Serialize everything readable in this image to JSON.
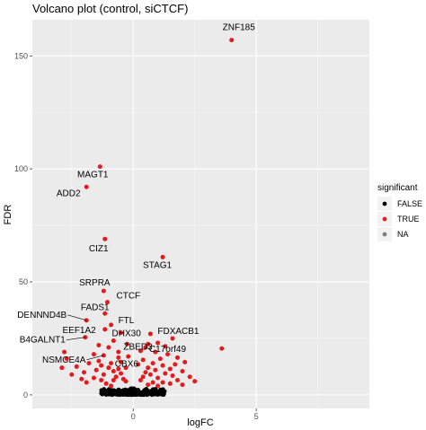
{
  "chart_data": {
    "type": "scatter",
    "title": "Volcano plot (control, siCTCF)",
    "xlabel": "logFC",
    "ylabel": "FDR",
    "xlim": [
      -4.1,
      9.6
    ],
    "ylim": [
      -6.0,
      166.0
    ],
    "xticks": [
      0,
      5
    ],
    "yticks": [
      0,
      50,
      100,
      150
    ],
    "grid": true,
    "legend": {
      "title": "significant",
      "placement": "right",
      "items": [
        {
          "label": "FALSE",
          "color": "#000000"
        },
        {
          "label": "TRUE",
          "color": "#e41a1c"
        },
        {
          "label": "NA",
          "color": "#7f7f7f"
        }
      ]
    },
    "labeled_points": [
      {
        "label": "ZNF185",
        "x": 4.0,
        "y": 157.0
      },
      {
        "label": "MAGT1",
        "x": -1.35,
        "y": 101.0
      },
      {
        "label": "ADD2",
        "x": -1.9,
        "y": 92.0
      },
      {
        "label": "CIZ1",
        "x": -1.15,
        "y": 69.0
      },
      {
        "label": "STAG1",
        "x": 1.2,
        "y": 61.0
      },
      {
        "label": "SRPRA",
        "x": -1.2,
        "y": 46.0
      },
      {
        "label": "CTCF",
        "x": -1.05,
        "y": 41.0
      },
      {
        "label": "FADS1",
        "x": -1.15,
        "y": 36.0
      },
      {
        "label": "DENNND4B",
        "x": -1.9,
        "y": 33.0
      },
      {
        "label": "FTL",
        "x": -0.9,
        "y": 31.0
      },
      {
        "label": "EEF1A2",
        "x": -1.15,
        "y": 29.0
      },
      {
        "label": "DHX30",
        "x": -0.5,
        "y": 27.5
      },
      {
        "label": "FDXACB1",
        "x": 0.7,
        "y": 27.0
      },
      {
        "label": "B4GALNT1",
        "x": -1.95,
        "y": 25.5
      },
      {
        "label": "ZBED3",
        "x": -0.25,
        "y": 22.5
      },
      {
        "label": "C17orf49",
        "x": 0.5,
        "y": 21.0
      },
      {
        "label": "NSMCE4A",
        "x": -1.2,
        "y": 17.5
      },
      {
        "label": "CBX6",
        "x": -0.6,
        "y": 16.5
      }
    ],
    "true_points": [
      [
        3.6,
        20.5
      ],
      [
        1.6,
        25.0
      ],
      [
        1.3,
        21.5
      ],
      [
        1.0,
        23.0
      ],
      [
        0.9,
        19.0
      ],
      [
        -2.8,
        19.0
      ],
      [
        -2.7,
        16.0
      ],
      [
        -2.3,
        12.5
      ],
      [
        -2.0,
        10.0
      ],
      [
        -1.8,
        14.0
      ],
      [
        -1.6,
        18.0
      ],
      [
        -1.4,
        15.0
      ],
      [
        -1.5,
        11.0
      ],
      [
        -1.3,
        13.0
      ],
      [
        -1.2,
        9.0
      ],
      [
        -1.0,
        12.0
      ],
      [
        -0.9,
        14.0
      ],
      [
        -0.8,
        10.5
      ],
      [
        -0.7,
        8.0
      ],
      [
        -0.6,
        11.5
      ],
      [
        -0.5,
        9.5
      ],
      [
        -0.4,
        7.0
      ],
      [
        -0.3,
        6.0
      ],
      [
        0.3,
        6.5
      ],
      [
        0.4,
        8.0
      ],
      [
        0.5,
        10.0
      ],
      [
        0.6,
        12.0
      ],
      [
        0.7,
        9.0
      ],
      [
        0.8,
        14.0
      ],
      [
        0.9,
        11.0
      ],
      [
        1.0,
        7.5
      ],
      [
        1.1,
        16.0
      ],
      [
        1.2,
        13.0
      ],
      [
        1.3,
        9.5
      ],
      [
        1.4,
        18.0
      ],
      [
        1.5,
        11.5
      ],
      [
        1.6,
        8.5
      ],
      [
        1.7,
        13.5
      ],
      [
        1.8,
        16.5
      ],
      [
        2.0,
        10.5
      ],
      [
        2.1,
        14.5
      ],
      [
        2.3,
        8.0
      ],
      [
        2.5,
        6.0
      ],
      [
        -1.1,
        5.0
      ],
      [
        -0.9,
        4.0
      ],
      [
        -0.8,
        6.5
      ],
      [
        -1.3,
        6.5
      ],
      [
        -1.6,
        7.5
      ],
      [
        -1.9,
        5.5
      ],
      [
        -2.1,
        7.0
      ],
      [
        0.6,
        4.5
      ],
      [
        0.8,
        5.5
      ],
      [
        1.0,
        4.0
      ],
      [
        1.2,
        5.5
      ],
      [
        1.5,
        5.0
      ],
      [
        1.8,
        6.5
      ],
      [
        2.0,
        4.5
      ],
      [
        -0.5,
        14.5
      ],
      [
        -0.3,
        12.0
      ],
      [
        0.2,
        13.5
      ],
      [
        0.4,
        15.5
      ],
      [
        -0.6,
        19.0
      ],
      [
        -0.2,
        17.0
      ],
      [
        0.3,
        19.5
      ],
      [
        -1.0,
        21.0
      ],
      [
        -1.4,
        22.0
      ],
      [
        -0.8,
        24.0
      ],
      [
        0.6,
        22.5
      ],
      [
        -2.5,
        9.0
      ],
      [
        -2.9,
        12.0
      ]
    ]
  }
}
